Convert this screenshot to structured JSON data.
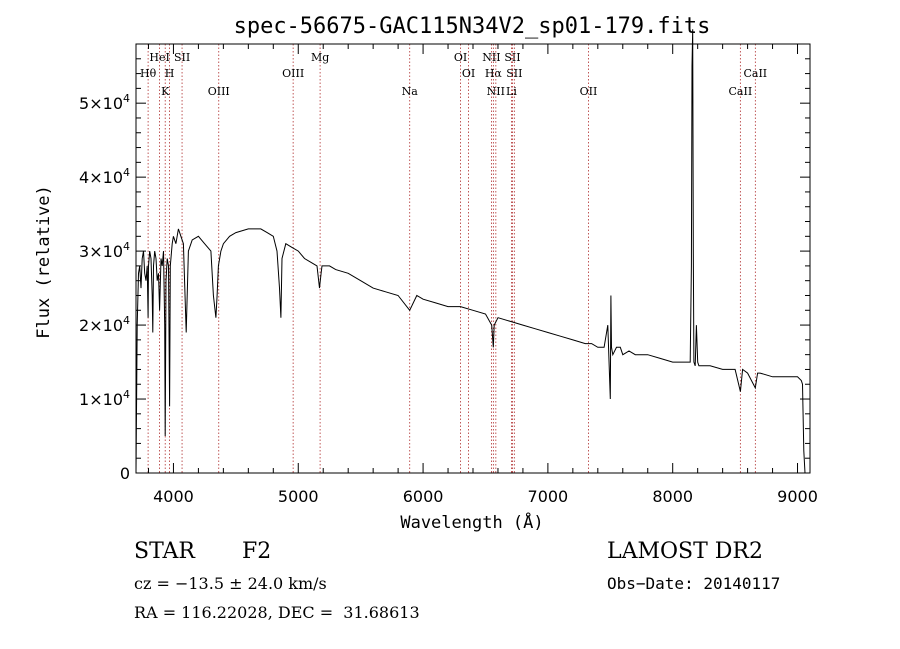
{
  "chart_data": {
    "type": "line",
    "title": "spec-56675-GAC115N34V2_sp01-179.fits",
    "xlabel": "Wavelength (Å)",
    "ylabel": "Flux (relative)",
    "xlim": [
      3700,
      9100
    ],
    "ylim": [
      0,
      58000
    ],
    "x_ticks": [
      4000,
      5000,
      6000,
      7000,
      8000,
      9000
    ],
    "y_ticks": [
      {
        "value": 0,
        "mant": "0",
        "exp": ""
      },
      {
        "value": 10000,
        "mant": "1×10",
        "exp": "4"
      },
      {
        "value": 20000,
        "mant": "2×10",
        "exp": "4"
      },
      {
        "value": 30000,
        "mant": "3×10",
        "exp": "4"
      },
      {
        "value": 40000,
        "mant": "4×10",
        "exp": "4"
      },
      {
        "value": 50000,
        "mant": "5×10",
        "exp": "4"
      }
    ],
    "spectral_lines": [
      {
        "label": "Hθ",
        "x": 3797,
        "row": 2
      },
      {
        "label": "HeI",
        "x": 3889,
        "row": 1
      },
      {
        "label": "K",
        "x": 3934,
        "row": 3
      },
      {
        "label": "SII",
        "x": 4069,
        "row": 1
      },
      {
        "label": "H",
        "x": 3969,
        "row": 2
      },
      {
        "label": "OIII",
        "x": 4363,
        "row": 3
      },
      {
        "label": "OIII",
        "x": 4959,
        "row": 2
      },
      {
        "label": "Mg",
        "x": 5175,
        "row": 1
      },
      {
        "label": "Na",
        "x": 5893,
        "row": 3
      },
      {
        "label": "OI",
        "x": 6300,
        "row": 1
      },
      {
        "label": "OI",
        "x": 6364,
        "row": 2
      },
      {
        "label": "NII",
        "x": 6548,
        "row": 1
      },
      {
        "label": "Hα",
        "x": 6563,
        "row": 2
      },
      {
        "label": "NII",
        "x": 6583,
        "row": 3
      },
      {
        "label": "SII",
        "x": 6716,
        "row": 1
      },
      {
        "label": "SII",
        "x": 6731,
        "row": 2
      },
      {
        "label": "Li",
        "x": 6708,
        "row": 3
      },
      {
        "label": "OII",
        "x": 7325,
        "row": 3
      },
      {
        "label": "CaII",
        "x": 8542,
        "row": 3
      },
      {
        "label": "CaII",
        "x": 8662,
        "row": 2
      }
    ],
    "series": [
      {
        "x": [
          3700,
          3710,
          3720,
          3730,
          3740,
          3750,
          3760,
          3770,
          3780,
          3790,
          3797,
          3800,
          3810,
          3820,
          3830,
          3835,
          3840,
          3850,
          3860,
          3870,
          3880,
          3889,
          3900,
          3910,
          3920,
          3930,
          3934,
          3940,
          3950,
          3960,
          3969,
          3975,
          3990,
          4000,
          4020,
          4040,
          4060,
          4080,
          4102,
          4120,
          4150,
          4200,
          4250,
          4300,
          4320,
          4340,
          4350,
          4360,
          4380,
          4400,
          4450,
          4500,
          4600,
          4700,
          4750,
          4800,
          4830,
          4850,
          4861,
          4870,
          4900,
          4950,
          5000,
          5050,
          5100,
          5150,
          5170,
          5183,
          5190,
          5250,
          5300,
          5400,
          5500,
          5600,
          5700,
          5800,
          5893,
          5950,
          6000,
          6100,
          6200,
          6300,
          6400,
          6500,
          6550,
          6563,
          6570,
          6600,
          6700,
          6800,
          6900,
          7000,
          7100,
          7200,
          7300,
          7350,
          7400,
          7450,
          7480,
          7500,
          7505,
          7510,
          7520,
          7550,
          7580,
          7600,
          7650,
          7700,
          7800,
          7900,
          8000,
          8100,
          8140,
          8150,
          8155,
          8160,
          8165,
          8170,
          8180,
          8190,
          8200,
          8210,
          8220,
          8300,
          8400,
          8500,
          8542,
          8560,
          8600,
          8662,
          8680,
          8700,
          8800,
          8900,
          9000,
          9030,
          9040,
          9050,
          9060
        ],
        "y": [
          0,
          20000,
          27000,
          28000,
          25000,
          29000,
          30000,
          27000,
          26000,
          28000,
          21000,
          28000,
          30000,
          29000,
          24000,
          19000,
          28000,
          30000,
          29000,
          26000,
          27000,
          22000,
          29000,
          28000,
          30000,
          20000,
          5000,
          26000,
          29000,
          28000,
          9000,
          28000,
          31000,
          32000,
          31000,
          33000,
          32000,
          31000,
          19000,
          30000,
          31500,
          32000,
          31000,
          30000,
          24000,
          21000,
          24000,
          28000,
          30000,
          31000,
          32000,
          32500,
          33000,
          33000,
          32500,
          32000,
          30000,
          25000,
          21000,
          29000,
          31000,
          30500,
          30000,
          29000,
          28500,
          28000,
          25000,
          27000,
          28000,
          28000,
          27500,
          27000,
          26000,
          25000,
          24500,
          24000,
          22000,
          24000,
          23500,
          23000,
          22500,
          22500,
          22000,
          21500,
          20000,
          17000,
          20000,
          21000,
          20500,
          20000,
          19500,
          19000,
          18500,
          18000,
          17500,
          17500,
          17000,
          17000,
          20000,
          10000,
          24000,
          17000,
          16000,
          17000,
          17000,
          16000,
          16500,
          16000,
          16000,
          15500,
          15000,
          15000,
          15000,
          28000,
          55000,
          60000,
          30000,
          15000,
          14500,
          20000,
          15000,
          14500,
          14500,
          14500,
          14000,
          14000,
          11000,
          14000,
          13500,
          11500,
          13500,
          13500,
          13000,
          13000,
          13000,
          12500,
          12000,
          3000,
          0
        ]
      }
    ]
  },
  "footer": {
    "object_class": "STAR",
    "subclass": "F2",
    "survey": "LAMOST DR2",
    "cz": "cz = −13.5 ± 24.0 km/s",
    "obs_date": "Obs−Date: 20140117",
    "coords": "RA = 116.22028, DEC =  31.68613"
  }
}
